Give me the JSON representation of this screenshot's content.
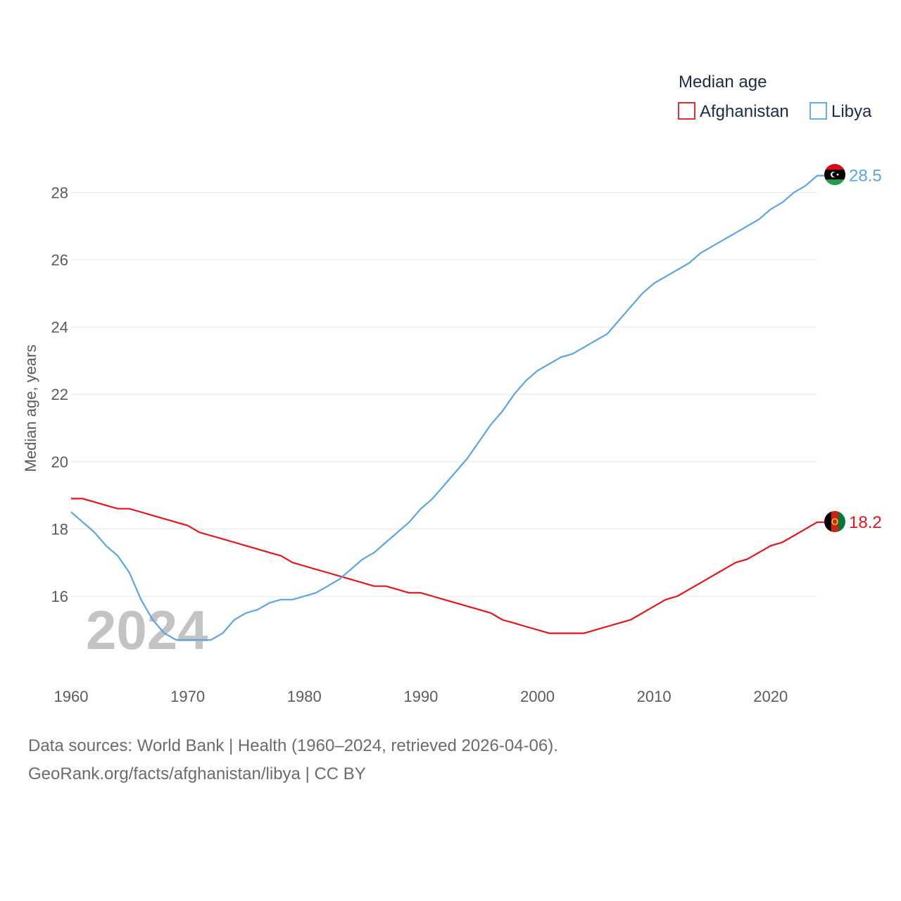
{
  "chart_data": {
    "type": "line",
    "title": "",
    "xlabel": "",
    "ylabel": "Median age, years",
    "xlim": [
      1960,
      2024
    ],
    "ylim": [
      14,
      29
    ],
    "yticks": [
      16,
      18,
      20,
      22,
      24,
      26,
      28
    ],
    "xticks": [
      1960,
      1970,
      1980,
      1990,
      2000,
      2010,
      2020
    ],
    "watermark_year": "2024",
    "legend": {
      "title": "Median age",
      "position": "top-right"
    },
    "x": [
      1960,
      1961,
      1962,
      1963,
      1964,
      1965,
      1966,
      1967,
      1968,
      1969,
      1970,
      1971,
      1972,
      1973,
      1974,
      1975,
      1976,
      1977,
      1978,
      1979,
      1980,
      1981,
      1982,
      1983,
      1984,
      1985,
      1986,
      1987,
      1988,
      1989,
      1990,
      1991,
      1992,
      1993,
      1994,
      1995,
      1996,
      1997,
      1998,
      1999,
      2000,
      2001,
      2002,
      2003,
      2004,
      2005,
      2006,
      2007,
      2008,
      2009,
      2010,
      2011,
      2012,
      2013,
      2014,
      2015,
      2016,
      2017,
      2018,
      2019,
      2020,
      2021,
      2022,
      2023,
      2024
    ],
    "series": [
      {
        "name": "Afghanistan",
        "color": "#e8141c",
        "end_label": "18.2",
        "values": [
          18.9,
          18.9,
          18.8,
          18.7,
          18.6,
          18.6,
          18.5,
          18.4,
          18.3,
          18.2,
          18.1,
          17.9,
          17.8,
          17.7,
          17.6,
          17.5,
          17.4,
          17.3,
          17.2,
          17.0,
          16.9,
          16.8,
          16.7,
          16.6,
          16.5,
          16.4,
          16.3,
          16.3,
          16.2,
          16.1,
          16.1,
          16.0,
          15.9,
          15.8,
          15.7,
          15.6,
          15.5,
          15.3,
          15.2,
          15.1,
          15.0,
          14.9,
          14.9,
          14.9,
          14.9,
          15.0,
          15.1,
          15.2,
          15.3,
          15.5,
          15.7,
          15.9,
          16.0,
          16.2,
          16.4,
          16.6,
          16.8,
          17.0,
          17.1,
          17.3,
          17.5,
          17.6,
          17.8,
          18.0,
          18.2
        ]
      },
      {
        "name": "Libya",
        "color": "#5aa5e6",
        "end_label": "28.5",
        "values": [
          18.5,
          18.2,
          17.9,
          17.5,
          17.2,
          16.7,
          15.9,
          15.3,
          14.9,
          14.7,
          14.7,
          14.7,
          14.7,
          14.9,
          15.3,
          15.5,
          15.6,
          15.8,
          15.9,
          15.9,
          16.0,
          16.1,
          16.3,
          16.5,
          16.8,
          17.1,
          17.3,
          17.6,
          17.9,
          18.2,
          18.6,
          18.9,
          19.3,
          19.7,
          20.1,
          20.6,
          21.1,
          21.5,
          22.0,
          22.4,
          22.7,
          22.9,
          23.1,
          23.2,
          23.4,
          23.6,
          23.8,
          24.2,
          24.6,
          25.0,
          25.3,
          25.5,
          25.7,
          25.9,
          26.2,
          26.4,
          26.6,
          26.8,
          27.0,
          27.2,
          27.5,
          27.7,
          28.0,
          28.2,
          28.5
        ]
      }
    ]
  },
  "footer": {
    "line1": "Data sources: World Bank | Health (1960–2024, retrieved 2026-04-06).",
    "line2": "GeoRank.org/facts/afghanistan/libya | CC BY"
  }
}
